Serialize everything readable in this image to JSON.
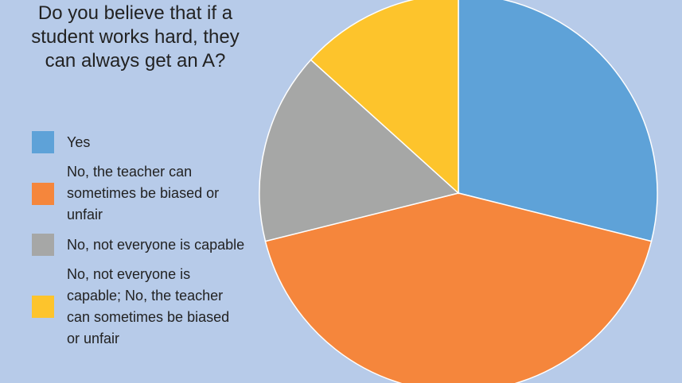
{
  "chart_data": {
    "type": "pie",
    "title": "Do you believe that if a student works hard, they can always get an A?",
    "categories": [
      "Yes",
      "No, the teacher can sometimes be biased or unfair",
      "No, not everyone is capable",
      "No, not everyone is capable; No, the teacher can sometimes be biased or unfair"
    ],
    "values": [
      28.9,
      42.2,
      15.6,
      13.3
    ],
    "colors": [
      "#5ea2d8",
      "#f5863c",
      "#a6a7a6",
      "#fdc42c"
    ],
    "start_angle": 0,
    "direction": "clockwise"
  }
}
